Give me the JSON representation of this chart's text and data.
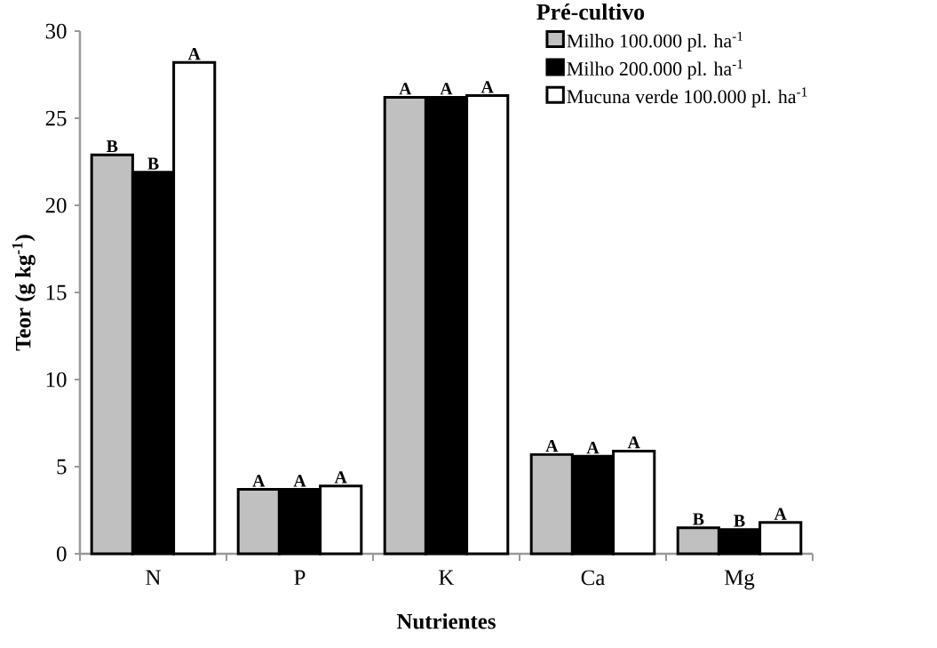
{
  "chart_data": {
    "type": "bar",
    "xlabel": "Nutrientes",
    "ylabel": "Teor (g kg$^{-1}$)",
    "legend_title": "Pré-cultivo",
    "categories": [
      "N",
      "P",
      "K",
      "Ca",
      "Mg"
    ],
    "series": [
      {
        "name": "Milho 100.000 pl. ha$^{-1}$",
        "color": "#c0c0c0",
        "values": [
          22.9,
          3.7,
          26.2,
          5.7,
          1.5
        ],
        "value_labels": [
          "B",
          "A",
          "A",
          "A",
          "B"
        ]
      },
      {
        "name": "Milho 200.000 pl. ha$^{-1}$",
        "color": "#000000",
        "values": [
          21.9,
          3.7,
          26.2,
          5.6,
          1.4
        ],
        "value_labels": [
          "B",
          "A",
          "A",
          "A",
          "B"
        ]
      },
      {
        "name": "Mucuna verde 100.000 pl. ha$^{-1}$",
        "color": "#ffffff",
        "values": [
          28.2,
          3.9,
          26.3,
          5.9,
          1.8
        ],
        "value_labels": [
          "A",
          "A",
          "A",
          "A",
          "A"
        ]
      }
    ],
    "ylim": [
      0,
      30
    ],
    "yticks": [
      0,
      5,
      10,
      15,
      20,
      25,
      30
    ],
    "legend": "top right",
    "grid": false
  }
}
